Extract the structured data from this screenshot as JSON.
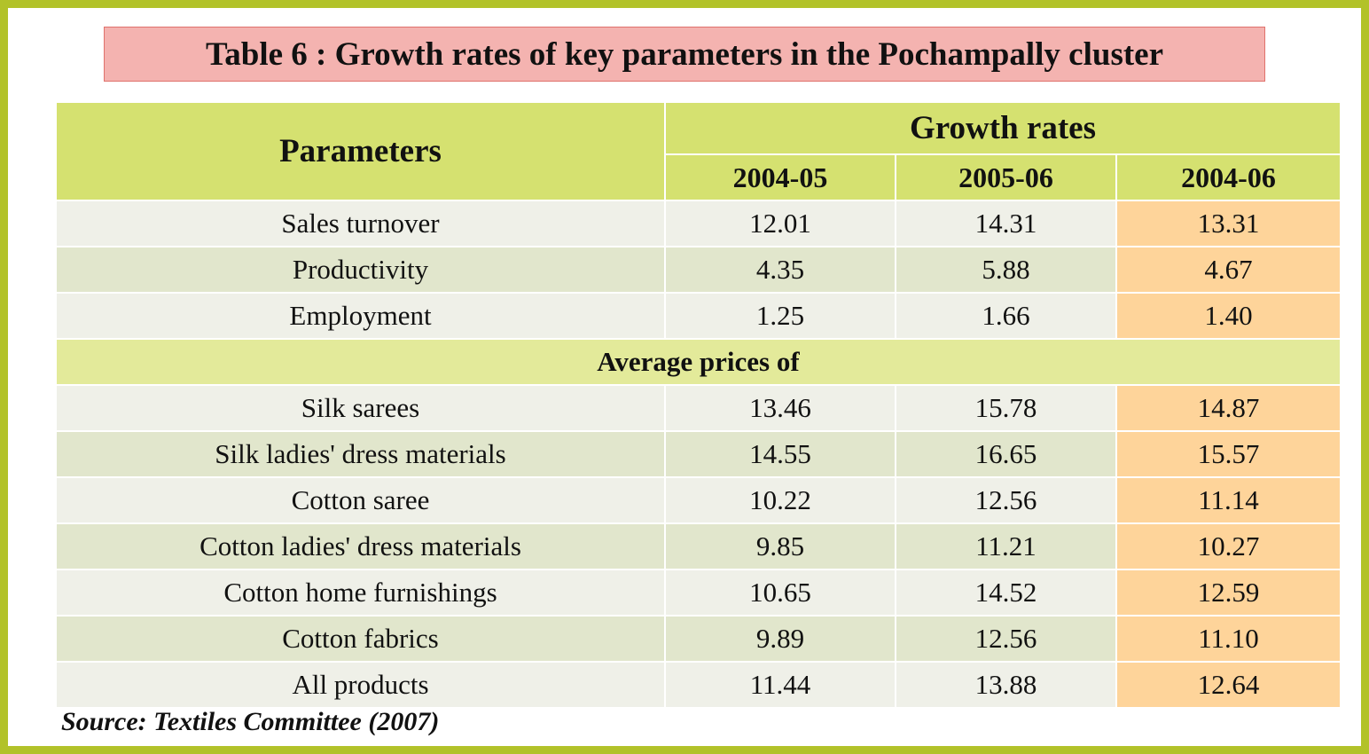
{
  "title": "Table 6 : Growth rates of key parameters in the Pochampally cluster",
  "header": {
    "parameters": "Parameters",
    "growth_rates": "Growth rates",
    "years": [
      "2004-05",
      "2005-06",
      "2004-06"
    ]
  },
  "rows_top": [
    {
      "label": "Sales turnover",
      "v1": "12.01",
      "v2": "14.31",
      "v3": "13.31"
    },
    {
      "label": "Productivity",
      "v1": "4.35",
      "v2": "5.88",
      "v3": "4.67"
    },
    {
      "label": "Employment",
      "v1": "1.25",
      "v2": "1.66",
      "v3": "1.40"
    }
  ],
  "section_label": "Average prices of",
  "rows_prices": [
    {
      "label": "Silk sarees",
      "v1": "13.46",
      "v2": "15.78",
      "v3": "14.87"
    },
    {
      "label": "Silk ladies' dress materials",
      "v1": "14.55",
      "v2": "16.65",
      "v3": "15.57"
    },
    {
      "label": "Cotton saree",
      "v1": "10.22",
      "v2": "12.56",
      "v3": "11.14"
    },
    {
      "label": "Cotton ladies' dress materials",
      "v1": "9.85",
      "v2": "11.21",
      "v3": "10.27"
    },
    {
      "label": "Cotton home furnishings",
      "v1": "10.65",
      "v2": "14.52",
      "v3": "12.59"
    },
    {
      "label": "Cotton fabrics",
      "v1": "9.89",
      "v2": "12.56",
      "v3": "11.10"
    },
    {
      "label": "All products",
      "v1": "11.44",
      "v2": "13.88",
      "v3": "12.64"
    }
  ],
  "source": "Source: Textiles Committee (2007)",
  "colors": {
    "border": "#b2c229",
    "title_bg": "#f4b3b0",
    "header_bg": "#d5e170",
    "highlight": "#fed49a"
  }
}
